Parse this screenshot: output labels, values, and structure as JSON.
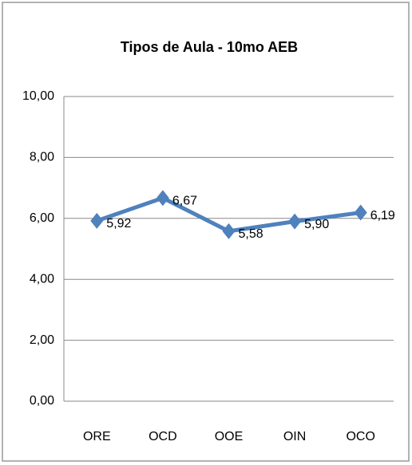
{
  "chart_data": {
    "type": "line",
    "title": "Tipos de Aula - 10mo AEB",
    "categories": [
      "ORE",
      "OCD",
      "OOE",
      "OIN",
      "OCO"
    ],
    "series": [
      {
        "name": "Tipos de Aula - 10mo AEB",
        "color": "#4f81bd",
        "values": [
          5.92,
          6.67,
          5.58,
          5.9,
          6.19
        ],
        "value_labels": [
          "5,92",
          "6,67",
          "5,58",
          "5,90",
          "6,19"
        ]
      }
    ],
    "ylim": [
      0,
      10
    ],
    "yticks": [
      {
        "value": 0,
        "label": "0,00"
      },
      {
        "value": 2,
        "label": "2,00"
      },
      {
        "value": 4,
        "label": "4,00"
      },
      {
        "value": 6,
        "label": "6,00"
      },
      {
        "value": 8,
        "label": "8,00"
      },
      {
        "value": 10,
        "label": "10,00"
      }
    ],
    "grid": true
  }
}
